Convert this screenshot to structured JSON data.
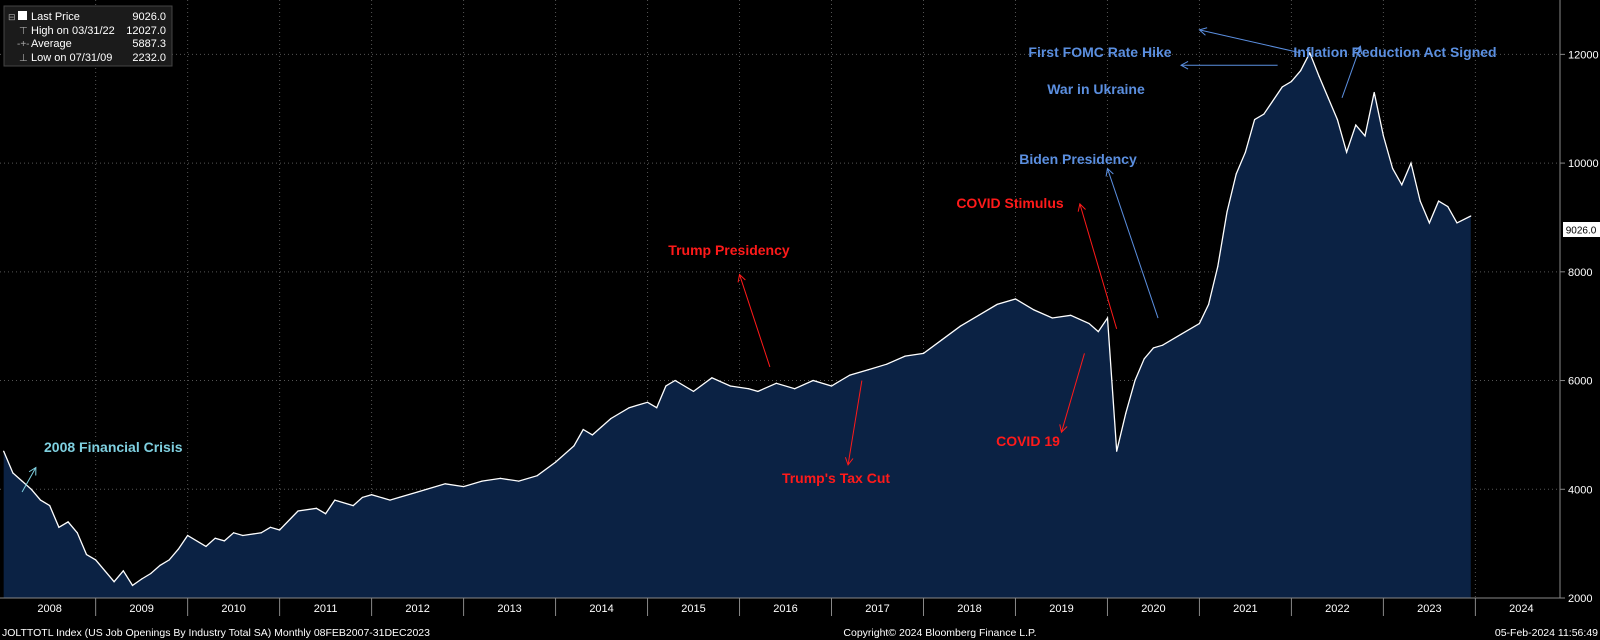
{
  "legend": {
    "rows": [
      {
        "label": "Last Price",
        "value": "9026.0"
      },
      {
        "label": "High on 03/31/22",
        "value": "12027.0"
      },
      {
        "label": "Average",
        "value": "5887.3"
      },
      {
        "label": "Low on 07/31/09",
        "value": "2232.0"
      }
    ]
  },
  "last_price_tag": "9026.0",
  "footer": {
    "left": "JOLTTOTL Index (US Job Openings By Industry Total SA)  Monthly 08FEB2007-31DEC2023",
    "center": "Copyright© 2024 Bloomberg Finance L.P.",
    "right": "05-Feb-2024 11:56:49"
  },
  "colors": {
    "background": "#000000",
    "line": "#ffffff",
    "area": "#0b2244",
    "red_annotation": "#ff1a1a",
    "blue_annotation": "#5b8fe0",
    "cyan_annotation": "#7fd0e0",
    "grid": "#555555"
  },
  "chart_data": {
    "type": "area",
    "title": "JOLTTOTL Index (US Job Openings By Industry Total SA)",
    "frequency": "Monthly",
    "xlabel": "",
    "ylabel": "",
    "x_range": [
      2007.96,
      2024.92
    ],
    "ylim": [
      2000,
      13000
    ],
    "yticks": [
      2000,
      4000,
      6000,
      8000,
      10000,
      12000
    ],
    "year_labels": [
      "2008",
      "2009",
      "2010",
      "2011",
      "2012",
      "2013",
      "2014",
      "2015",
      "2016",
      "2017",
      "2018",
      "2019",
      "2020",
      "2021",
      "2022",
      "2023",
      "2024"
    ],
    "grid": true,
    "series": [
      {
        "name": "US Job Openings",
        "x": [
          2008.0,
          2008.1,
          2008.2,
          2008.3,
          2008.4,
          2008.5,
          2008.6,
          2008.7,
          2008.8,
          2008.9,
          2009.0,
          2009.1,
          2009.2,
          2009.3,
          2009.4,
          2009.5,
          2009.6,
          2009.7,
          2009.8,
          2009.9,
          2010.0,
          2010.2,
          2010.3,
          2010.4,
          2010.5,
          2010.6,
          2010.8,
          2010.9,
          2011.0,
          2011.2,
          2011.4,
          2011.5,
          2011.6,
          2011.8,
          2011.9,
          2012.0,
          2012.2,
          2012.3,
          2012.5,
          2012.6,
          2012.8,
          2013.0,
          2013.2,
          2013.4,
          2013.6,
          2013.8,
          2014.0,
          2014.2,
          2014.3,
          2014.4,
          2014.5,
          2014.6,
          2014.8,
          2015.0,
          2015.1,
          2015.2,
          2015.3,
          2015.5,
          2015.7,
          2015.9,
          2016.1,
          2016.2,
          2016.4,
          2016.6,
          2016.8,
          2017.0,
          2017.1,
          2017.2,
          2017.4,
          2017.6,
          2017.8,
          2018.0,
          2018.2,
          2018.4,
          2018.6,
          2018.8,
          2019.0,
          2019.2,
          2019.4,
          2019.6,
          2019.8,
          2019.9,
          2020.0,
          2020.1,
          2020.2,
          2020.3,
          2020.4,
          2020.5,
          2020.6,
          2020.8,
          2021.0,
          2021.1,
          2021.2,
          2021.3,
          2021.4,
          2021.5,
          2021.6,
          2021.7,
          2021.9,
          2022.0,
          2022.1,
          2022.2,
          2022.3,
          2022.4,
          2022.5,
          2022.6,
          2022.7,
          2022.8,
          2022.9,
          2023.0,
          2023.1,
          2023.2,
          2023.3,
          2023.4,
          2023.5,
          2023.6,
          2023.7,
          2023.8,
          2023.95
        ],
        "values": [
          4700,
          4300,
          4150,
          4000,
          3800,
          3700,
          3300,
          3400,
          3200,
          2800,
          2700,
          2500,
          2300,
          2500,
          2232,
          2350,
          2450,
          2600,
          2700,
          2900,
          3150,
          2950,
          3100,
          3050,
          3200,
          3150,
          3200,
          3300,
          3250,
          3600,
          3650,
          3550,
          3800,
          3700,
          3850,
          3900,
          3800,
          3850,
          3950,
          4000,
          4100,
          4050,
          4150,
          4200,
          4150,
          4250,
          4500,
          4800,
          5100,
          5000,
          5150,
          5300,
          5500,
          5600,
          5500,
          5900,
          6000,
          5800,
          6050,
          5900,
          5850,
          5800,
          5950,
          5850,
          6000,
          5900,
          6000,
          6100,
          6200,
          6300,
          6450,
          6500,
          6750,
          7000,
          7200,
          7400,
          7500,
          7300,
          7150,
          7200,
          7050,
          6900,
          7150,
          4700,
          5400,
          6000,
          6400,
          6600,
          6650,
          6850,
          7050,
          7400,
          8100,
          9100,
          9800,
          10200,
          10800,
          10900,
          11400,
          11500,
          11700,
          12027,
          11600,
          11200,
          10800,
          10200,
          10700,
          10500,
          11300,
          10500,
          9900,
          9600,
          10000,
          9300,
          8900,
          9300,
          9200,
          8900,
          9026
        ]
      }
    ],
    "annotations": [
      {
        "text": "2008 Financial Crisis",
        "color": "cyan",
        "arrow_from": [
          2008.2,
          3950
        ],
        "arrow_to": [
          2008.35,
          4400
        ]
      },
      {
        "text": "Trump Presidency",
        "color": "red",
        "arrow_from": [
          2016.33,
          6250
        ],
        "arrow_to": [
          2016.0,
          7950
        ]
      },
      {
        "text": "Trump's Tax Cut",
        "color": "red",
        "arrow_from": [
          2017.33,
          6000
        ],
        "arrow_to": [
          2017.18,
          4450
        ]
      },
      {
        "text": "COVID Stimulus",
        "color": "red",
        "arrow_from": [
          2020.1,
          6950
        ],
        "arrow_to": [
          2019.7,
          9250
        ]
      },
      {
        "text": "COVID 19",
        "color": "red",
        "arrow_from": [
          2019.75,
          6500
        ],
        "arrow_to": [
          2019.5,
          5050
        ]
      },
      {
        "text": "Biden Presidency",
        "color": "blue",
        "arrow_from": [
          2020.55,
          7150
        ],
        "arrow_to": [
          2020.0,
          9900
        ]
      },
      {
        "text": "War in Ukraine",
        "color": "blue",
        "arrow_from": [
          2021.85,
          11800
        ],
        "arrow_to": [
          2020.8,
          11800
        ]
      },
      {
        "text": "First FOMC Rate Hike",
        "color": "blue",
        "arrow_from": [
          2022.1,
          12027
        ],
        "arrow_to": [
          2021.0,
          12450
        ]
      },
      {
        "text": "Inflation Reduction Act Signed",
        "color": "blue",
        "arrow_from": [
          2022.55,
          11200
        ],
        "arrow_to": [
          2022.75,
          12150
        ]
      }
    ]
  }
}
